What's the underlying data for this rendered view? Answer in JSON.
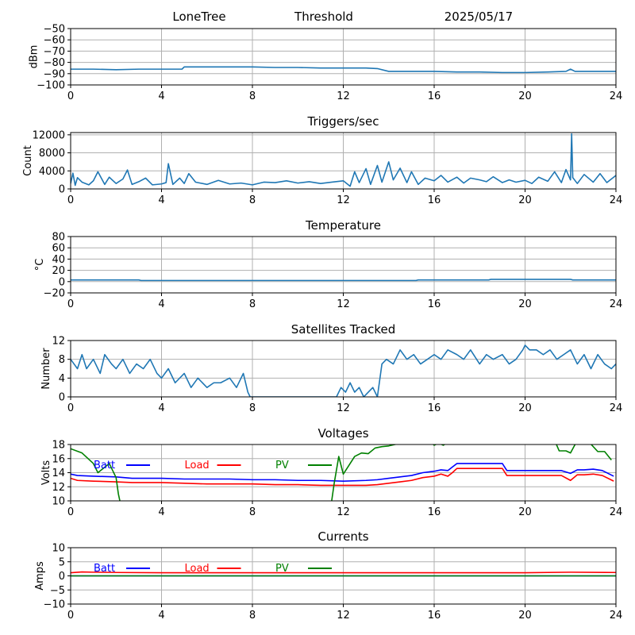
{
  "header": {
    "station": "LoneTree",
    "mode": "Threshold",
    "date": "2025/05/17"
  },
  "colors": {
    "default_line": "#1f77b4",
    "batt": "#0000ff",
    "load": "#ff0000",
    "pv": "#008000",
    "grid": "#b0b0b0"
  },
  "chart_data": [
    {
      "id": "signal",
      "type": "line",
      "title": "",
      "ylabel": "dBm",
      "xlim": [
        0,
        24
      ],
      "ylim": [
        -100,
        -50
      ],
      "xticks": [
        "0",
        "4",
        "8",
        "12",
        "16",
        "20",
        "24"
      ],
      "yticks": [
        "−100",
        "−90",
        "−80",
        "−70",
        "−60",
        "−50"
      ],
      "ytick_values": [
        -100,
        -90,
        -80,
        -70,
        -60,
        -50
      ],
      "grid": true,
      "series": [
        {
          "color": "#1f77b4",
          "x": [
            0,
            1,
            2,
            3,
            4,
            4.9,
            5,
            5.5,
            6,
            7,
            8,
            9,
            10,
            11,
            12,
            13,
            13.5,
            14,
            15,
            16,
            17,
            18,
            19,
            20,
            21,
            21.8,
            22,
            22.2,
            23,
            24
          ],
          "y": [
            -86,
            -86,
            -86.5,
            -86,
            -86,
            -86,
            -84,
            -84,
            -84,
            -84,
            -84,
            -84.5,
            -84.5,
            -85,
            -85,
            -85,
            -85.5,
            -88,
            -88,
            -88,
            -88.5,
            -88.5,
            -89,
            -89,
            -88.5,
            -88,
            -86,
            -88,
            -88,
            -88
          ]
        }
      ]
    },
    {
      "id": "triggers",
      "type": "line",
      "title": "Triggers/sec",
      "ylabel": "Count",
      "xlim": [
        0,
        24
      ],
      "ylim": [
        0,
        12500
      ],
      "xticks": [
        "0",
        "4",
        "8",
        "12",
        "16",
        "20",
        "24"
      ],
      "yticks": [
        "0",
        "4000",
        "8000",
        "12000"
      ],
      "ytick_values": [
        0,
        4000,
        8000,
        12000
      ],
      "grid": true,
      "series": [
        {
          "color": "#1f77b4",
          "x": [
            0,
            0.1,
            0.2,
            0.3,
            0.5,
            0.8,
            1.0,
            1.2,
            1.5,
            1.7,
            2.0,
            2.3,
            2.5,
            2.7,
            3.0,
            3.3,
            3.6,
            4.0,
            4.2,
            4.3,
            4.5,
            4.8,
            5.0,
            5.2,
            5.5,
            6.0,
            6.5,
            7.0,
            7.5,
            8.0,
            8.5,
            9.0,
            9.5,
            10.0,
            10.5,
            11.0,
            11.5,
            12.0,
            12.3,
            12.5,
            12.7,
            13.0,
            13.2,
            13.5,
            13.7,
            14.0,
            14.2,
            14.5,
            14.8,
            15.0,
            15.3,
            15.6,
            16.0,
            16.3,
            16.6,
            17.0,
            17.3,
            17.6,
            18.0,
            18.3,
            18.6,
            19.0,
            19.3,
            19.6,
            20.0,
            20.3,
            20.6,
            21.0,
            21.3,
            21.6,
            21.8,
            22.0,
            22.05,
            22.1,
            22.3,
            22.6,
            23.0,
            23.3,
            23.6,
            24.0
          ],
          "y": [
            1200,
            3500,
            800,
            2500,
            1500,
            900,
            1800,
            3800,
            1000,
            2600,
            1200,
            2200,
            4200,
            1000,
            1600,
            2400,
            900,
            1100,
            1400,
            5600,
            1000,
            2400,
            1200,
            3400,
            1500,
            1000,
            1900,
            1100,
            1300,
            900,
            1500,
            1400,
            1800,
            1300,
            1600,
            1200,
            1500,
            1800,
            600,
            3800,
            1400,
            4500,
            1000,
            5200,
            1500,
            6000,
            2000,
            4600,
            1400,
            3800,
            1000,
            2400,
            1800,
            3000,
            1500,
            2600,
            1300,
            2400,
            2000,
            1600,
            2700,
            1400,
            2000,
            1500,
            1900,
            1200,
            2600,
            1700,
            3800,
            1400,
            4300,
            2000,
            12200,
            2500,
            1200,
            3200,
            1500,
            3400,
            1400,
            3000
          ]
        }
      ]
    },
    {
      "id": "temperature",
      "type": "line",
      "title": "Temperature",
      "ylabel": "°C",
      "xlim": [
        0,
        24
      ],
      "ylim": [
        -20,
        80
      ],
      "xticks": [
        "0",
        "4",
        "8",
        "12",
        "16",
        "20",
        "24"
      ],
      "yticks": [
        "−20",
        "0",
        "20",
        "40",
        "60",
        "80"
      ],
      "ytick_values": [
        -20,
        0,
        20,
        40,
        60,
        80
      ],
      "grid": true,
      "series": [
        {
          "color": "#1f77b4",
          "x": [
            0,
            3,
            3.1,
            6,
            9,
            12,
            15.2,
            15.3,
            18.4,
            18.5,
            22,
            22.1,
            24
          ],
          "y": [
            3,
            3,
            2,
            2,
            2,
            2,
            2,
            3,
            3,
            4,
            4,
            3,
            3
          ]
        }
      ]
    },
    {
      "id": "satellites",
      "type": "line",
      "title": "Satellites Tracked",
      "ylabel": "Number",
      "xlim": [
        0,
        24
      ],
      "ylim": [
        0,
        12
      ],
      "xticks": [
        "0",
        "4",
        "8",
        "12",
        "16",
        "20",
        "24"
      ],
      "yticks": [
        "0",
        "4",
        "8",
        "12"
      ],
      "ytick_values": [
        0,
        4,
        8,
        12
      ],
      "grid": true,
      "series": [
        {
          "color": "#1f77b4",
          "x": [
            0,
            0.3,
            0.5,
            0.7,
            1.0,
            1.3,
            1.5,
            1.8,
            2.0,
            2.3,
            2.6,
            2.9,
            3.2,
            3.5,
            3.8,
            4.0,
            4.3,
            4.6,
            5.0,
            5.3,
            5.6,
            6.0,
            6.3,
            6.6,
            7.0,
            7.3,
            7.6,
            7.8,
            7.9,
            8.0,
            9.0,
            10.0,
            11.0,
            11.7,
            11.9,
            12.1,
            12.3,
            12.5,
            12.7,
            12.9,
            13.1,
            13.3,
            13.5,
            13.7,
            13.9,
            14.2,
            14.5,
            14.8,
            15.1,
            15.4,
            15.7,
            16.0,
            16.3,
            16.6,
            17.0,
            17.3,
            17.6,
            18.0,
            18.3,
            18.6,
            19.0,
            19.3,
            19.6,
            19.9,
            20.0,
            20.2,
            20.5,
            20.8,
            21.1,
            21.4,
            21.7,
            22.0,
            22.3,
            22.6,
            22.9,
            23.2,
            23.5,
            23.8,
            24.0
          ],
          "y": [
            8,
            6,
            9,
            6,
            8,
            5,
            9,
            7,
            6,
            8,
            5,
            7,
            6,
            8,
            5,
            4,
            6,
            3,
            5,
            2,
            4,
            2,
            3,
            3,
            4,
            2,
            5,
            1,
            0,
            0,
            0,
            0,
            0,
            0,
            2,
            1,
            3,
            1,
            2,
            0,
            1,
            2,
            0,
            7,
            8,
            7,
            10,
            8,
            9,
            7,
            8,
            9,
            8,
            10,
            9,
            8,
            10,
            7,
            9,
            8,
            9,
            7,
            8,
            10,
            11,
            10,
            10,
            9,
            10,
            8,
            9,
            10,
            7,
            9,
            6,
            9,
            7,
            6,
            7
          ]
        }
      ]
    },
    {
      "id": "voltages",
      "type": "line",
      "title": "Voltages",
      "ylabel": "Volts",
      "xlim": [
        0,
        24
      ],
      "ylim": [
        10,
        18
      ],
      "xticks": [
        "0",
        "4",
        "8",
        "12",
        "16",
        "20",
        "24"
      ],
      "yticks": [
        "10",
        "12",
        "14",
        "16",
        "18"
      ],
      "ytick_values": [
        10,
        12,
        14,
        16,
        18
      ],
      "grid": true,
      "legend": "top-left",
      "series": [
        {
          "name": "Batt",
          "color": "#0000ff",
          "x": [
            0,
            0.3,
            1,
            2,
            2.7,
            3,
            4,
            5,
            6,
            7,
            8,
            9,
            10,
            11,
            12,
            13,
            13.5,
            14,
            14.5,
            15,
            15.5,
            16,
            16.3,
            16.6,
            16.8,
            17,
            18,
            19,
            19.2,
            20,
            21,
            21.6,
            22,
            22.3,
            22.6,
            23,
            23.4,
            23.9
          ],
          "y": [
            13.8,
            13.6,
            13.5,
            13.4,
            13.2,
            13.2,
            13.2,
            13.1,
            13.1,
            13.1,
            13.0,
            13.0,
            12.9,
            12.9,
            12.8,
            12.9,
            13.0,
            13.2,
            13.4,
            13.6,
            14.0,
            14.2,
            14.4,
            14.3,
            14.8,
            15.3,
            15.3,
            15.3,
            14.3,
            14.3,
            14.3,
            14.3,
            13.9,
            14.4,
            14.4,
            14.5,
            14.3,
            13.5
          ]
        },
        {
          "name": "Load",
          "color": "#ff0000",
          "x": [
            0,
            0.3,
            1,
            2,
            2.7,
            3,
            4,
            5,
            6,
            7,
            8,
            9,
            10,
            11,
            12,
            13,
            13.5,
            14,
            14.5,
            15,
            15.5,
            16,
            16.3,
            16.6,
            16.8,
            17,
            18,
            19,
            19.2,
            20,
            21,
            21.6,
            22,
            22.3,
            22.6,
            23,
            23.4,
            23.9
          ],
          "y": [
            13.2,
            12.9,
            12.8,
            12.7,
            12.6,
            12.6,
            12.6,
            12.5,
            12.4,
            12.4,
            12.4,
            12.3,
            12.3,
            12.2,
            12.2,
            12.2,
            12.3,
            12.5,
            12.7,
            12.9,
            13.3,
            13.5,
            13.8,
            13.5,
            14.0,
            14.6,
            14.6,
            14.6,
            13.6,
            13.6,
            13.6,
            13.6,
            12.9,
            13.7,
            13.7,
            13.8,
            13.6,
            12.8
          ]
        },
        {
          "name": "PV",
          "color": "#008000",
          "x": [
            0,
            0.5,
            1.0,
            1.2,
            1.7,
            2.0,
            2.1,
            2.3
          ],
          "y": [
            17.4,
            16.8,
            15.3,
            14.0,
            15.3,
            13.3,
            11.0,
            8.0
          ]
        },
        {
          "name": "PV",
          "color": "#008000",
          "x": [
            11.4,
            11.6,
            11.8,
            12.0,
            12.2,
            12.5,
            12.8,
            13.1,
            13.4,
            13.7,
            14.0,
            14.4,
            14.7,
            15.0
          ],
          "y": [
            8.0,
            12.5,
            16.3,
            13.8,
            14.8,
            16.3,
            16.8,
            16.7,
            17.5,
            17.7,
            17.8,
            18.1,
            18.3,
            18.5
          ]
        },
        {
          "name": "PV",
          "color": "#008000",
          "x": [
            15.8,
            16.0,
            16.2,
            16.4,
            16.6
          ],
          "y": [
            18.5,
            17.9,
            18.2,
            17.9,
            18.3
          ]
        },
        {
          "name": "PV",
          "color": "#008000",
          "x": [
            21.3,
            21.5,
            21.8,
            22.0,
            22.2,
            22.5,
            22.8,
            23.2,
            23.5,
            23.8
          ],
          "y": [
            18.6,
            17.1,
            17.1,
            16.8,
            18.0,
            19.0,
            18.4,
            17.0,
            17.0,
            15.8
          ]
        }
      ]
    },
    {
      "id": "currents",
      "type": "line",
      "title": "Currents",
      "ylabel": "Amps",
      "xlim": [
        0,
        24
      ],
      "ylim": [
        -10,
        10
      ],
      "xticks": [
        "0",
        "4",
        "8",
        "12",
        "16",
        "20",
        "24"
      ],
      "yticks": [
        "−10",
        "−5",
        "0",
        "5",
        "10"
      ],
      "ytick_values": [
        -10,
        -5,
        0,
        5,
        10
      ],
      "grid": true,
      "legend": "top-left",
      "series": [
        {
          "name": "Batt",
          "color": "#0000ff",
          "x": [
            0,
            24
          ],
          "y": [
            0,
            0
          ]
        },
        {
          "name": "Load",
          "color": "#ff0000",
          "x": [
            0,
            0.5,
            1,
            2,
            4,
            6,
            8,
            10,
            12,
            14,
            16,
            18,
            20,
            22,
            24
          ],
          "y": [
            1.1,
            1.4,
            1.3,
            1.2,
            1.1,
            1.1,
            1.1,
            1.1,
            1.1,
            1.1,
            1.1,
            1.1,
            1.1,
            1.3,
            1.2
          ]
        },
        {
          "name": "PV",
          "color": "#008000",
          "x": [
            0,
            24
          ],
          "y": [
            0,
            0
          ]
        }
      ]
    }
  ]
}
